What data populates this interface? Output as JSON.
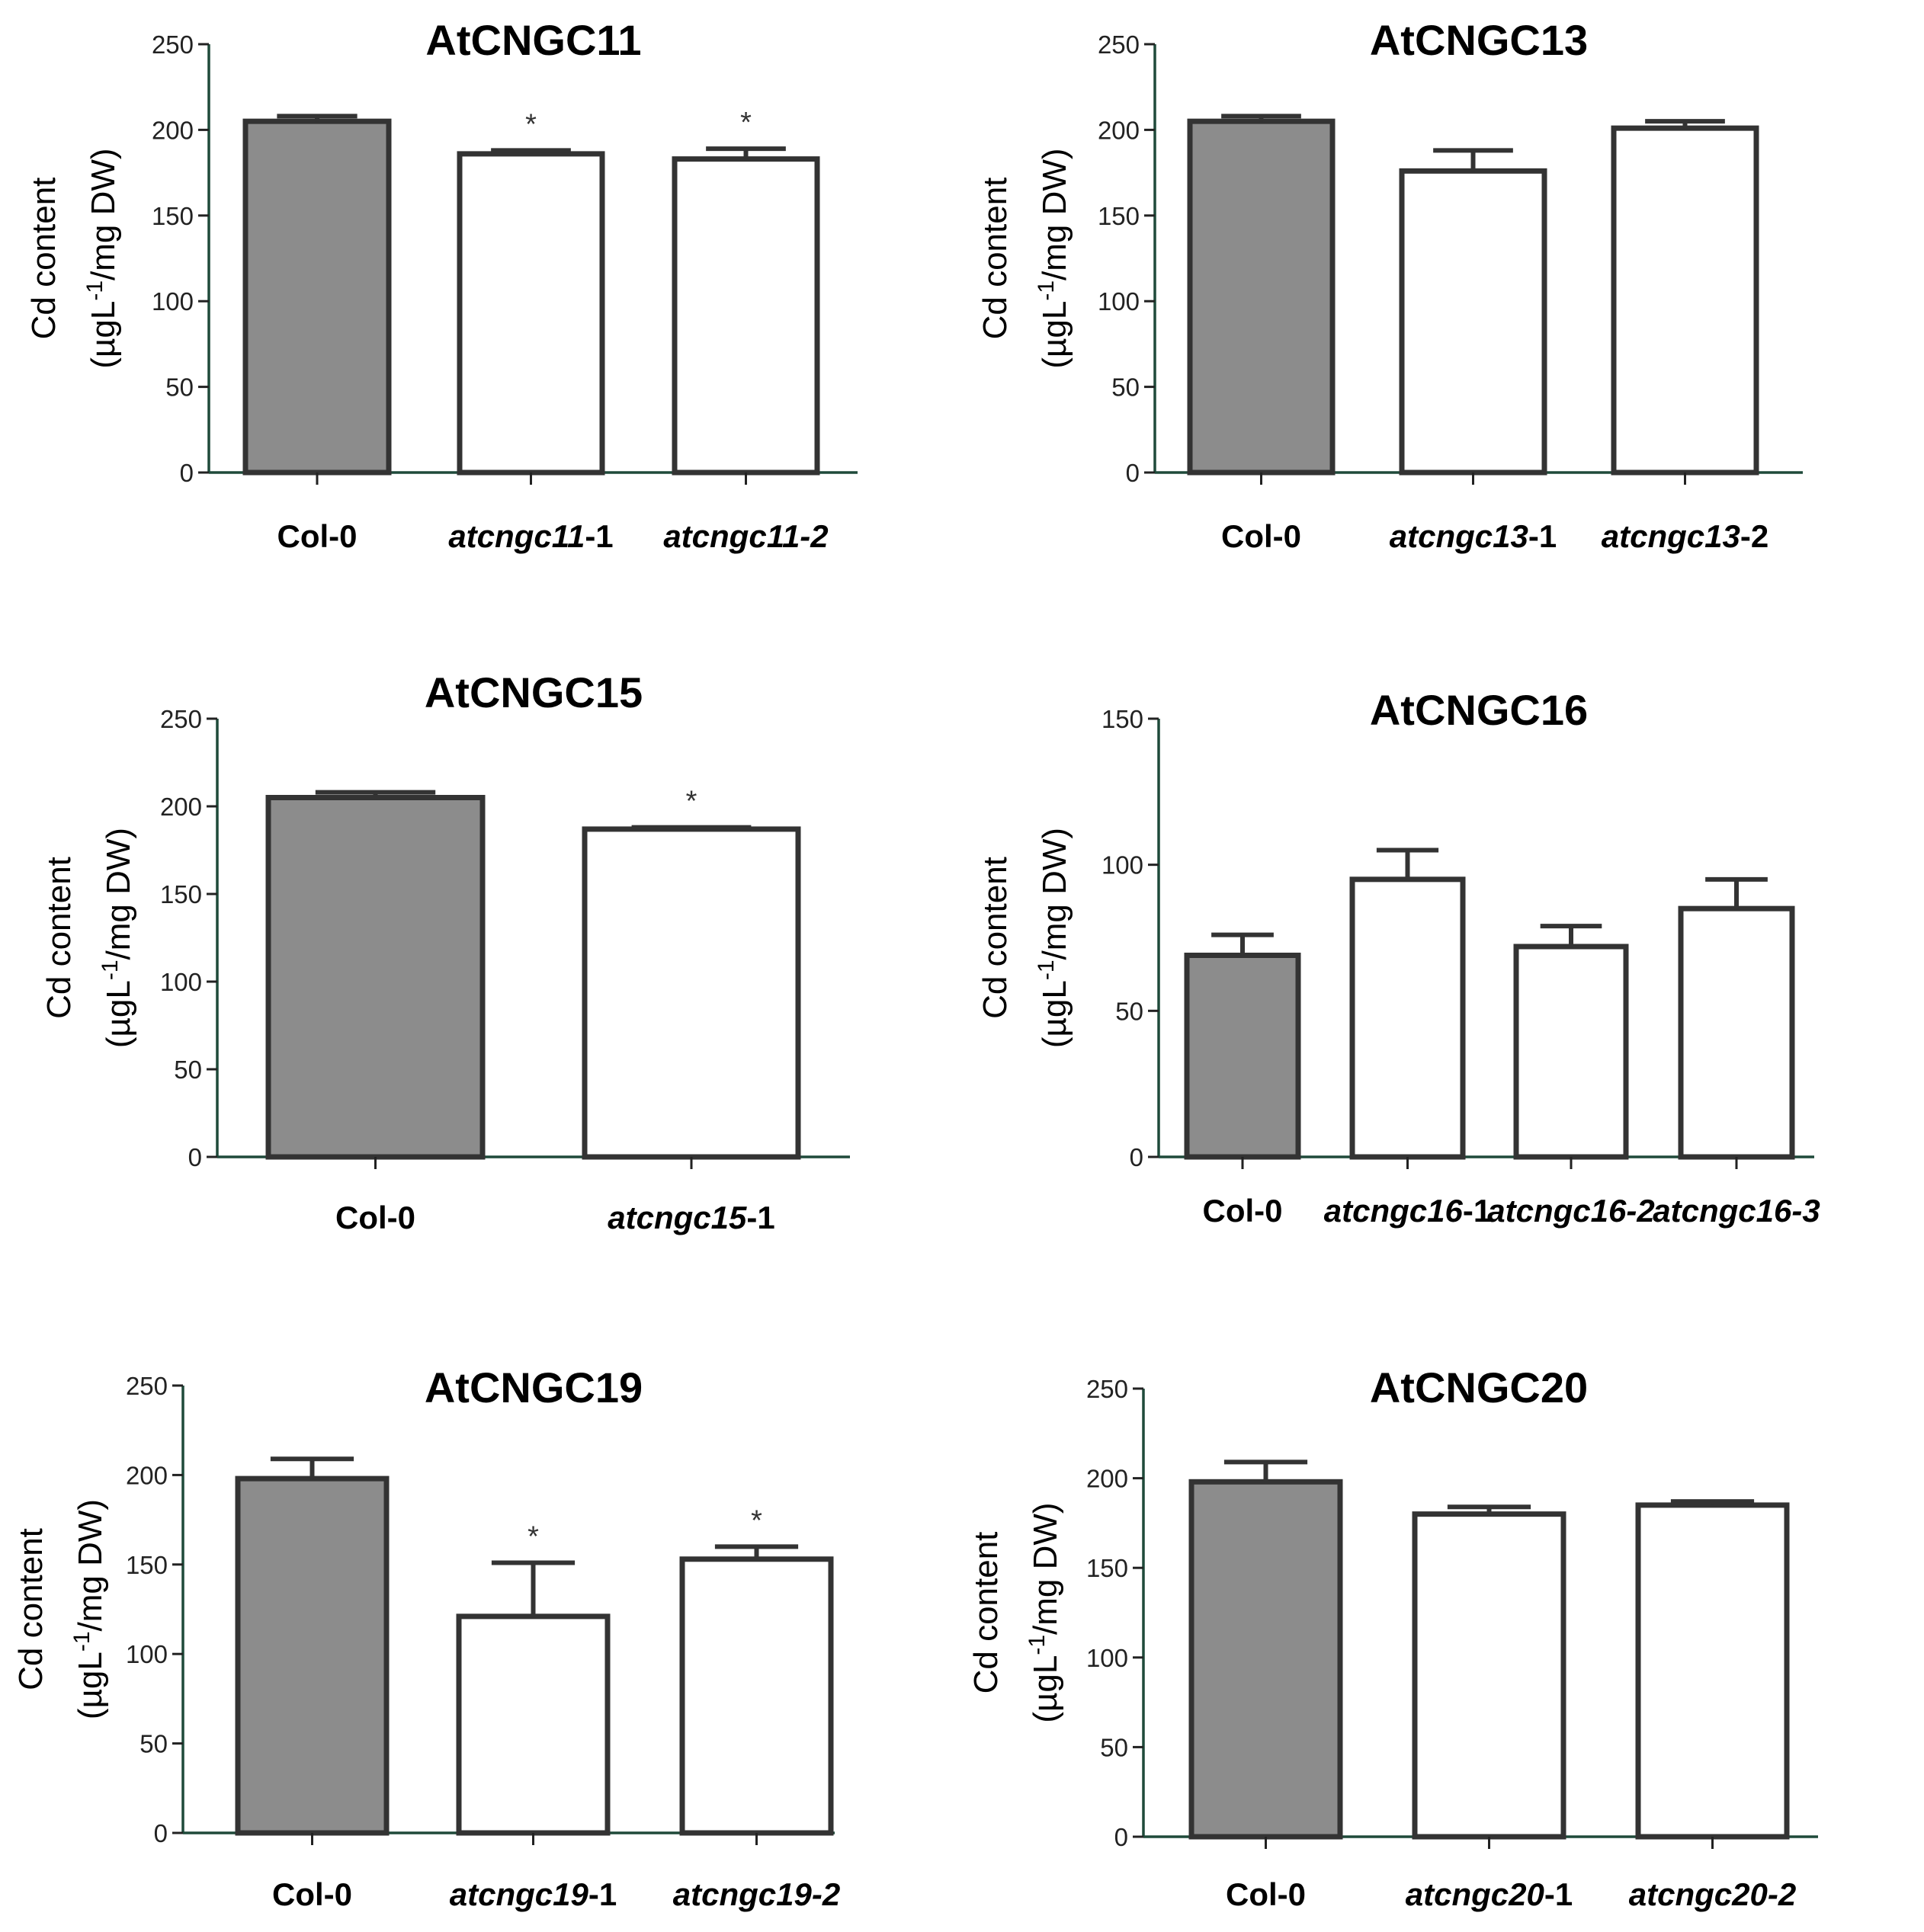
{
  "figure": {
    "ylabel_line1": "Cd content",
    "ylabel_unit_pre": "(µgL",
    "ylabel_unit_sup": "-1",
    "ylabel_unit_post": "/mg DW)",
    "colors": {
      "control": "#8c8c8c",
      "mutant": "#ffffff",
      "stroke": "#333333"
    }
  },
  "chart_data": [
    {
      "type": "bar",
      "title": "AtCNGC11",
      "ylim": [
        0,
        250
      ],
      "yticks": [
        0,
        50,
        100,
        150,
        200,
        250
      ],
      "categories": [
        {
          "pre": "",
          "italic": "",
          "post": "Col-0"
        },
        {
          "pre": "",
          "italic": "atcngc11",
          "post": "-1"
        },
        {
          "pre": "",
          "italic": "atcngc11-2",
          "post": ""
        }
      ],
      "values": [
        205,
        186,
        183
      ],
      "errors": [
        3,
        2,
        6
      ],
      "significance": [
        "",
        "*",
        "*"
      ]
    },
    {
      "type": "bar",
      "title": "AtCNGC13",
      "ylim": [
        0,
        250
      ],
      "yticks": [
        0,
        50,
        100,
        150,
        200,
        250
      ],
      "categories": [
        {
          "pre": "",
          "italic": "",
          "post": "Col-0"
        },
        {
          "pre": "",
          "italic": "atcngc13",
          "post": "-1"
        },
        {
          "pre": "",
          "italic": "atcngc13",
          "post": "-2"
        }
      ],
      "values": [
        205,
        176,
        201
      ],
      "errors": [
        3,
        12,
        4
      ],
      "significance": [
        "",
        "",
        ""
      ]
    },
    {
      "type": "bar",
      "title": "AtCNGC15",
      "ylim": [
        0,
        250
      ],
      "yticks": [
        0,
        50,
        100,
        150,
        200,
        250
      ],
      "categories": [
        {
          "pre": "",
          "italic": "",
          "post": "Col-0"
        },
        {
          "pre": "",
          "italic": "atcngc15",
          "post": "-1"
        }
      ],
      "values": [
        205,
        187
      ],
      "errors": [
        3,
        1
      ],
      "significance": [
        "",
        "*"
      ]
    },
    {
      "type": "bar",
      "title": "AtCNGC16",
      "ylim": [
        0,
        150
      ],
      "yticks": [
        0,
        50,
        100,
        150
      ],
      "categories": [
        {
          "pre": "",
          "italic": "",
          "post": "Col-0"
        },
        {
          "pre": "",
          "italic": "atcngc16",
          "post": "-1"
        },
        {
          "pre": "",
          "italic": "atcngc16-2",
          "post": ""
        },
        {
          "pre": "",
          "italic": "atcngc16-3",
          "post": ""
        }
      ],
      "values": [
        69,
        95,
        72,
        85
      ],
      "errors": [
        7,
        10,
        7,
        10
      ],
      "significance": [
        "",
        "",
        "",
        ""
      ]
    },
    {
      "type": "bar",
      "title": "AtCNGC19",
      "ylim": [
        0,
        250
      ],
      "yticks": [
        0,
        50,
        100,
        150,
        200,
        250
      ],
      "categories": [
        {
          "pre": "",
          "italic": "",
          "post": "Col-0"
        },
        {
          "pre": "",
          "italic": "atcngc19",
          "post": "-1"
        },
        {
          "pre": "",
          "italic": "atcngc19-2",
          "post": ""
        }
      ],
      "values": [
        198,
        121,
        153
      ],
      "errors": [
        11,
        30,
        7
      ],
      "significance": [
        "",
        "*",
        "*"
      ]
    },
    {
      "type": "bar",
      "title": "AtCNGC20",
      "ylim": [
        0,
        250
      ],
      "yticks": [
        0,
        50,
        100,
        150,
        200,
        250
      ],
      "categories": [
        {
          "pre": "",
          "italic": "",
          "post": "Col-0"
        },
        {
          "pre": "",
          "italic": "atcngc20",
          "post": "-1"
        },
        {
          "pre": "",
          "italic": "atcngc20-2",
          "post": ""
        }
      ],
      "values": [
        198,
        180,
        185
      ],
      "errors": [
        11,
        4,
        2
      ],
      "significance": [
        "",
        "",
        ""
      ]
    }
  ]
}
